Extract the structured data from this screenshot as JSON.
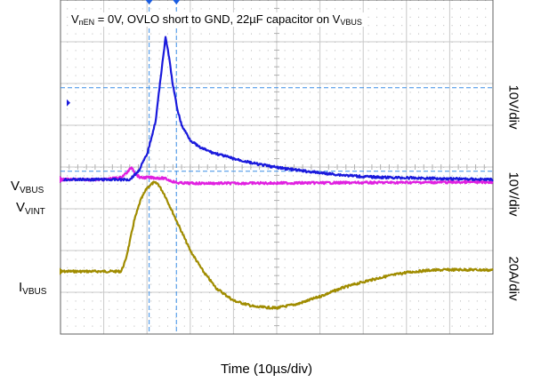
{
  "title": {
    "v_prefix": "V",
    "v_sub": "nEN",
    "middle": " = 0V, OVLO short to GND, 22µF capacitor on V",
    "tail_sub": "VBUS"
  },
  "channels": [
    {
      "id": "vvbus",
      "base": "V",
      "sub": "VBUS",
      "scale": "10V/div",
      "color": "#1a1adc"
    },
    {
      "id": "vvint",
      "base": "V",
      "sub": "VINT",
      "scale": "10V/div",
      "color": "#e020e0"
    },
    {
      "id": "ivbus",
      "base": "I",
      "sub": "VBUS",
      "scale": "20A/div",
      "color": "#a08c00"
    }
  ],
  "xlabel": "Time (10µs/div)",
  "chart_data": {
    "type": "line",
    "xlabel": "Time (10µs/div)",
    "x_unit": "µs",
    "x_range": [
      0,
      100
    ],
    "grid": true,
    "grid_divisions": {
      "x": 10,
      "y": 8
    },
    "cursors_x": [
      20.5,
      26.8
    ],
    "cursor_y_div": [
      5.9,
      3.9
    ],
    "series": [
      {
        "name": "VVBUS",
        "unit": "V",
        "volts_per_div": 10,
        "ground_div": 3.7,
        "x": [
          0,
          10,
          16.0,
          18.0,
          20.0,
          22.0,
          23.5,
          24.3,
          25.0,
          26.0,
          27.0,
          28.0,
          30.0,
          32.0,
          35.0,
          40.0,
          45.0,
          50.0,
          55.0,
          60.0,
          65.0,
          70.0,
          75.0,
          80.0,
          85.0,
          90.0,
          95.0,
          100.0
        ],
        "y": [
          0,
          0,
          0,
          2.0,
          6.0,
          14.0,
          27.5,
          34.0,
          30.0,
          22.5,
          17.0,
          13.0,
          9.5,
          7.8,
          6.5,
          5.0,
          3.8,
          2.9,
          2.2,
          1.6,
          1.1,
          0.7,
          0.5,
          0.4,
          0.3,
          0.2,
          0.1,
          0.0
        ]
      },
      {
        "name": "VVINT",
        "unit": "V",
        "volts_per_div": 10,
        "ground_div": 3.7,
        "x": [
          0,
          10,
          14.0,
          15.5,
          16.5,
          17.5,
          18.5,
          20.0,
          22.0,
          24.0,
          25.5,
          27.0,
          30.0,
          40.0,
          60.0,
          80.0,
          100.0
        ],
        "y": [
          0.0,
          0.0,
          0.5,
          1.8,
          3.0,
          1.2,
          0.4,
          0.5,
          0.4,
          0.3,
          -0.3,
          -0.8,
          -0.9,
          -0.9,
          -0.8,
          -0.7,
          -0.6
        ]
      },
      {
        "name": "IVBUS",
        "unit": "A",
        "amps_per_div": 20,
        "ground_div": 1.5,
        "x": [
          0,
          14.0,
          15.0,
          16.0,
          17.0,
          18.5,
          20.0,
          21.5,
          22.5,
          24.0,
          26.0,
          28.0,
          30.0,
          33.0,
          36.0,
          40.0,
          45.0,
          50.0,
          55.0,
          60.0,
          65.0,
          70.0,
          75.0,
          80.0,
          85.0,
          90.0,
          95.0,
          100.0
        ],
        "y": [
          0,
          0,
          5,
          14,
          24,
          34,
          40,
          42.5,
          42,
          37,
          28,
          19,
          10,
          0,
          -8,
          -14,
          -17,
          -17.5,
          -15.5,
          -12,
          -8,
          -5,
          -2.5,
          -0.5,
          0.5,
          0.8,
          0.8,
          0.6
        ]
      }
    ]
  }
}
